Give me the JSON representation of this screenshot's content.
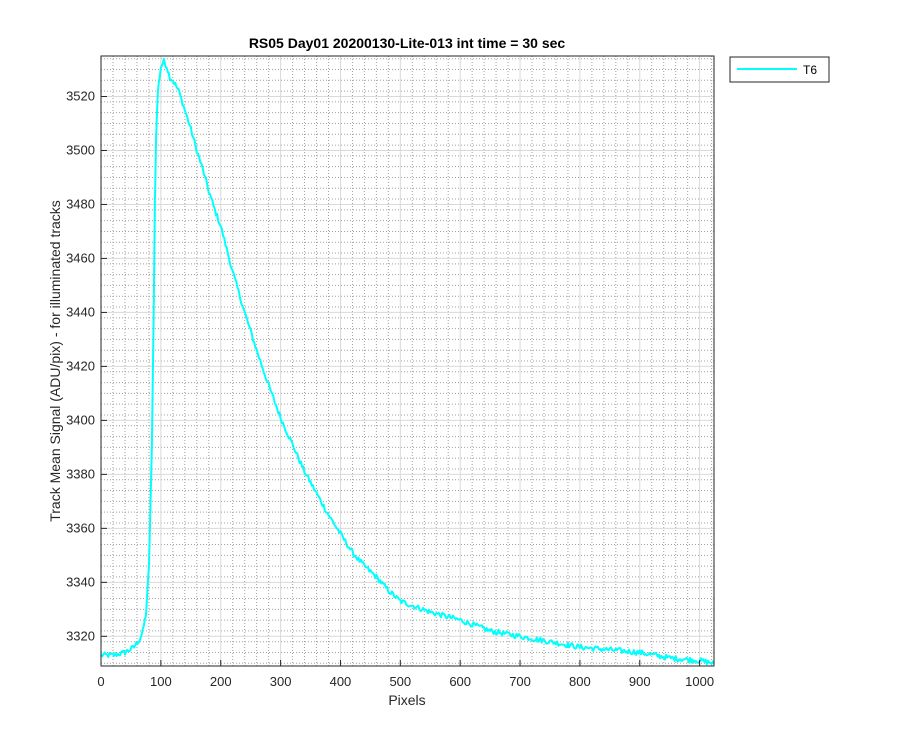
{
  "chart_data": {
    "type": "line",
    "title": "RS05 Day01 20200130-Lite-013 int time = 30 sec",
    "xlabel": "Pixels",
    "ylabel": "Track Mean Signal (ADU/pix) - for illuminated tracks",
    "xlim": [
      0,
      1024
    ],
    "ylim": [
      3309,
      3535
    ],
    "xticks": [
      0,
      100,
      200,
      300,
      400,
      500,
      600,
      700,
      800,
      900,
      1000
    ],
    "yticks": [
      3320,
      3340,
      3360,
      3380,
      3400,
      3420,
      3440,
      3460,
      3480,
      3500,
      3520
    ],
    "grid": true,
    "minor_grid": true,
    "legend": "outside-top-right",
    "series": [
      {
        "name": "T6",
        "color": "#00ffff",
        "x": [
          0,
          20,
          40,
          55,
          65,
          70,
          75,
          80,
          85,
          88,
          90,
          92,
          95,
          100,
          105,
          110,
          115,
          120,
          130,
          140,
          150,
          160,
          170,
          180,
          190,
          200,
          220,
          240,
          260,
          280,
          300,
          320,
          340,
          360,
          380,
          400,
          420,
          440,
          460,
          480,
          500,
          550,
          600,
          650,
          700,
          750,
          800,
          850,
          900,
          950,
          1000,
          1024
        ],
        "y": [
          3313,
          3313,
          3314,
          3316,
          3319,
          3322,
          3328,
          3345,
          3390,
          3440,
          3480,
          3505,
          3522,
          3531,
          3533,
          3531,
          3527,
          3526,
          3522,
          3515,
          3508,
          3500,
          3493,
          3485,
          3478,
          3472,
          3455,
          3440,
          3426,
          3413,
          3401,
          3391,
          3381,
          3373,
          3365,
          3358,
          3351,
          3346,
          3342,
          3337,
          3333,
          3329,
          3326,
          3322,
          3320,
          3318,
          3316,
          3315,
          3314,
          3312,
          3311,
          3310
        ]
      }
    ]
  }
}
